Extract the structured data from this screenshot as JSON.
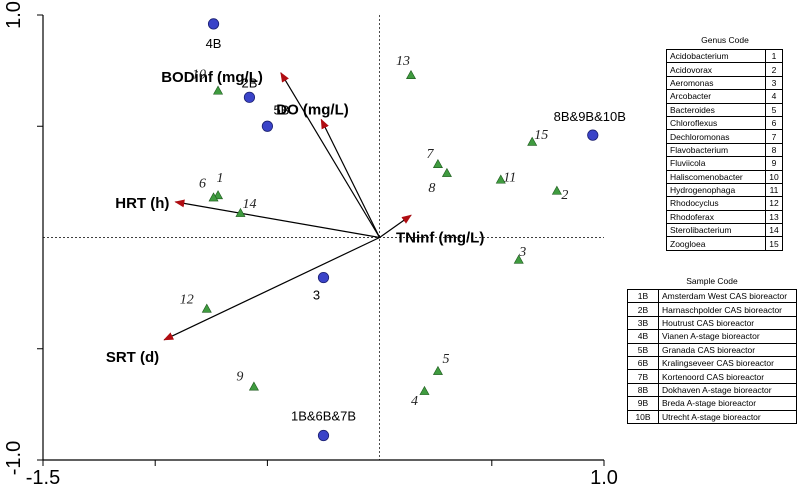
{
  "chart_data": {
    "type": "scatter",
    "xlim": [
      -1.5,
      1.0
    ],
    "ylim": [
      -1.0,
      1.0
    ],
    "x_ticks": [
      "-1.5",
      "1.0"
    ],
    "y_ticks": [
      "1.0",
      "-1.0"
    ],
    "x_minor_ticks": [
      -1.0,
      -0.5,
      0.5
    ],
    "y_minor_ticks": [
      0.5,
      -0.5
    ],
    "zero_lines": "dashed",
    "colors": {
      "samples": "#3a43c8",
      "genera": "#3f9b3f",
      "vectors": "#b00d12"
    },
    "samples": [
      {
        "label": "4B",
        "x": -0.74,
        "y": 0.96
      },
      {
        "label": "2B",
        "x": -0.58,
        "y": 0.63
      },
      {
        "label": "5B",
        "x": -0.5,
        "y": 0.5
      },
      {
        "label": "3",
        "x": -0.25,
        "y": -0.18
      },
      {
        "label": "1B&6B&7B",
        "x": -0.25,
        "y": -0.89
      },
      {
        "label": "8B&9B&10B",
        "x": 0.95,
        "y": 0.46
      }
    ],
    "genera": [
      {
        "label": "1",
        "x": -0.72,
        "y": 0.19
      },
      {
        "label": "2",
        "x": 0.79,
        "y": 0.21
      },
      {
        "label": "3",
        "x": 0.62,
        "y": -0.1
      },
      {
        "label": "4",
        "x": 0.2,
        "y": -0.69
      },
      {
        "label": "5",
        "x": 0.26,
        "y": -0.6
      },
      {
        "label": "6",
        "x": -0.74,
        "y": 0.18
      },
      {
        "label": "7",
        "x": 0.26,
        "y": 0.33
      },
      {
        "label": "8",
        "x": 0.3,
        "y": 0.29
      },
      {
        "label": "9",
        "x": -0.56,
        "y": -0.67
      },
      {
        "label": "10",
        "x": -0.72,
        "y": 0.66
      },
      {
        "label": "11",
        "x": 0.54,
        "y": 0.26
      },
      {
        "label": "12",
        "x": -0.77,
        "y": -0.32
      },
      {
        "label": "13",
        "x": 0.14,
        "y": 0.73
      },
      {
        "label": "14",
        "x": -0.62,
        "y": 0.11
      },
      {
        "label": "15",
        "x": 0.68,
        "y": 0.43
      }
    ],
    "vectors": [
      {
        "label": "BODinf (mg/L)",
        "x": -0.44,
        "y": 0.74
      },
      {
        "label": "DO (mg/L)",
        "x": -0.26,
        "y": 0.53
      },
      {
        "label": "HRT (h)",
        "x": -0.91,
        "y": 0.16
      },
      {
        "label": "SRT (d)",
        "x": -0.96,
        "y": -0.46
      },
      {
        "label": "TNinf (mg/L)",
        "x": 0.14,
        "y": 0.1
      }
    ]
  },
  "genus_table": {
    "title": "Genus Code",
    "rows": [
      {
        "genus": "Acidobacterium",
        "code": "1"
      },
      {
        "genus": "Acidovorax",
        "code": "2"
      },
      {
        "genus": "Aeromonas",
        "code": "3"
      },
      {
        "genus": "Arcobacter",
        "code": "4"
      },
      {
        "genus": "Bacteroides",
        "code": "5"
      },
      {
        "genus": "Chloroflexus",
        "code": "6"
      },
      {
        "genus": "Dechloromonas",
        "code": "7"
      },
      {
        "genus": "Flavobacterium",
        "code": "8"
      },
      {
        "genus": "Fluviicola",
        "code": "9"
      },
      {
        "genus": "Haliscomenobacter",
        "code": "10"
      },
      {
        "genus": "Hydrogenophaga",
        "code": "11"
      },
      {
        "genus": "Rhodocyclus",
        "code": "12"
      },
      {
        "genus": "Rhodoferax",
        "code": "13"
      },
      {
        "genus": "Sterolibacterium",
        "code": "14"
      },
      {
        "genus": "Zoogloea",
        "code": "15"
      }
    ]
  },
  "sample_table": {
    "title": "Sample Code",
    "rows": [
      {
        "code": "1B",
        "sample": "Amsterdam West CAS bioreactor"
      },
      {
        "code": "2B",
        "sample": "Harnaschpolder CAS bioreactor"
      },
      {
        "code": "3B",
        "sample": "Houtrust CAS bioreactor"
      },
      {
        "code": "4B",
        "sample": "Vianen A-stage bioreactor"
      },
      {
        "code": "5B",
        "sample": "Granada CAS bioreactor"
      },
      {
        "code": "6B",
        "sample": "Kralingseveer CAS bioreactor"
      },
      {
        "code": "7B",
        "sample": "Kortenoord CAS bioreactor"
      },
      {
        "code": "8B",
        "sample": "Dokhaven A-stage bioreactor"
      },
      {
        "code": "9B",
        "sample": "Breda A-stage bioreactor"
      },
      {
        "code": "10B",
        "sample": "Utrecht A-stage bioreactor"
      }
    ]
  }
}
